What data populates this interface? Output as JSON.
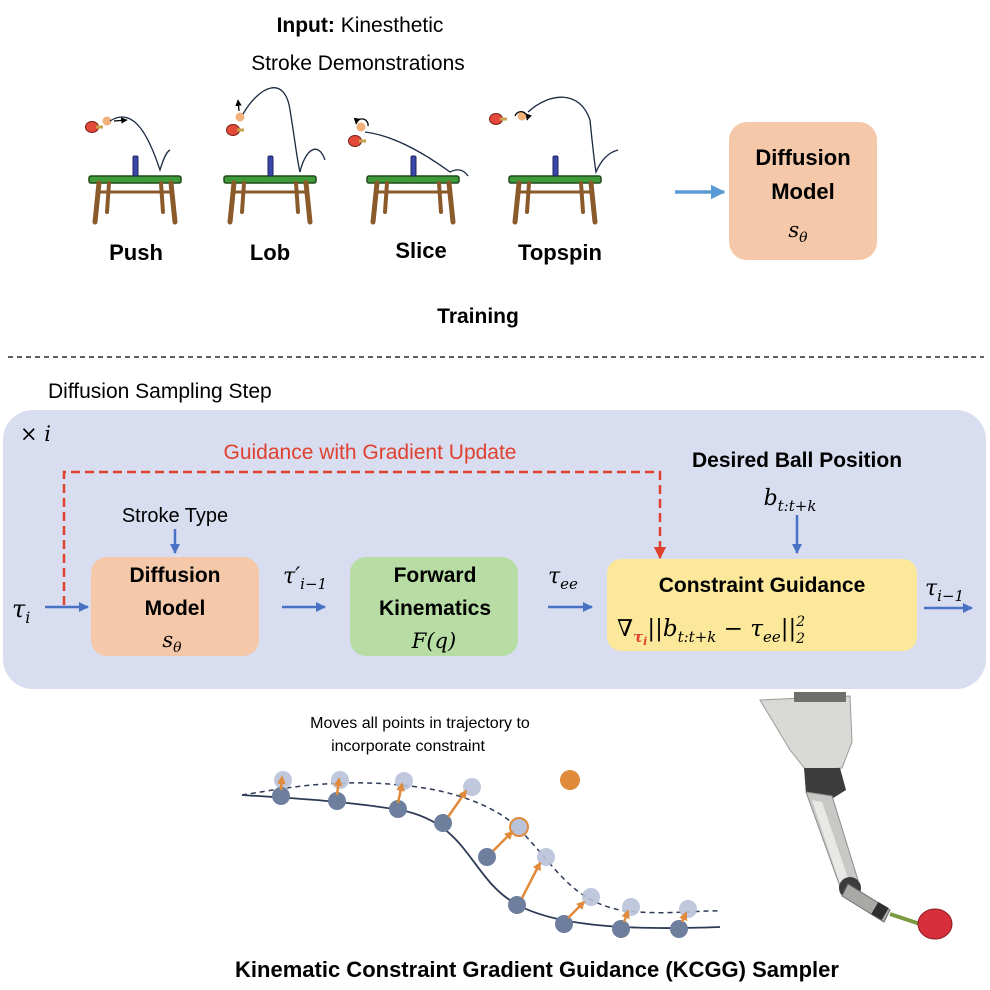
{
  "training": {
    "input_label_bold": "Input:",
    "input_label_rest": " Kinesthetic",
    "input_label_line2": "Stroke Demonstrations",
    "strokes": [
      "Push",
      "Lob",
      "Slice",
      "Topspin"
    ],
    "model_title_line1": "Diffusion",
    "model_title_line2": "Model",
    "model_symbol": "s",
    "model_symbol_sub": "θ",
    "section_label": "Training"
  },
  "sampling": {
    "section_label": "Diffusion Sampling Step",
    "repeat_label": "× i",
    "guidance_label": "Guidance with Gradient Update",
    "desired_ball_title": "Desired Ball Position",
    "desired_ball_symbol": "b",
    "desired_ball_sub": "t:t+k",
    "stroke_type_label": "Stroke Type",
    "tau_in": "τ",
    "tau_in_sub": "i",
    "diffusion_model_line1": "Diffusion",
    "diffusion_model_line2": "Model",
    "diffusion_symbol": "s",
    "diffusion_symbol_sub": "θ",
    "tau_prime": "τ′",
    "tau_prime_sub": "i−1",
    "fk_line1": "Forward",
    "fk_line2": "Kinematics",
    "fk_formula": "F(q)",
    "tau_ee": "τ",
    "tau_ee_sub": "ee",
    "constraint_title": "Constraint Guidance",
    "constraint_nabla": "∇",
    "constraint_grad_var": "τ",
    "constraint_grad_var_sub": "i",
    "constraint_expr_b": "||b",
    "constraint_expr_b_sub": "t:t+k",
    "constraint_expr_minus": " − τ",
    "constraint_expr_tau_sub": "ee",
    "constraint_expr_norm": "||",
    "constraint_expr_pow": "2",
    "constraint_expr_pow_sub": "2",
    "tau_out": "τ",
    "tau_out_sub": "i−1"
  },
  "sampler": {
    "note_line1": "Moves all points in trajectory to",
    "note_line2": "incorporate constraint",
    "title": "Kinematic Constraint Gradient Guidance (KCGG) Sampler"
  },
  "colors": {
    "arrow_blue": "#4a72c4",
    "diffusion_box": "#f4c8a8",
    "fk_box": "#b7dca4",
    "constraint_box": "#fbe89a",
    "panel_bg": "#d8ddf0",
    "guidance_red": "#e0402e",
    "orange": "#e08a3c",
    "node_dark": "#6e7f9e",
    "node_light": "#b8c2d8",
    "table_green": "#3f9a3a",
    "table_brown": "#8b5a2b",
    "net_blue": "#3a46a8"
  }
}
